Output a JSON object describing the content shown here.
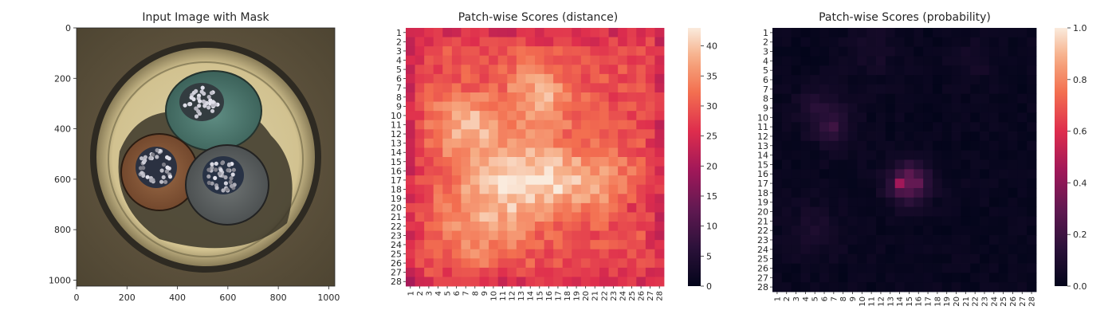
{
  "panels": {
    "image": {
      "title": "Input Image with Mask",
      "x_ticks": [
        "0",
        "200",
        "400",
        "600",
        "800",
        "1000"
      ],
      "y_ticks": [
        "0",
        "200",
        "400",
        "600",
        "800",
        "1000"
      ],
      "extent": [
        0,
        1024
      ]
    },
    "distance": {
      "title": "Patch-wise Scores (distance)",
      "colorbar_ticks": [
        "0",
        "5",
        "10",
        "15",
        "20",
        "25",
        "30",
        "35",
        "40"
      ],
      "colorbar_range": [
        0,
        43
      ]
    },
    "probability": {
      "title": "Patch-wise Scores (probability)",
      "colorbar_ticks": [
        "0.0",
        "0.2",
        "0.4",
        "0.6",
        "0.8",
        "1.0"
      ],
      "colorbar_range": [
        0.0,
        1.0
      ]
    }
  },
  "row_labels": [
    "1",
    "2",
    "3",
    "4",
    "5",
    "6",
    "7",
    "8",
    "9",
    "10",
    "11",
    "12",
    "13",
    "14",
    "15",
    "16",
    "17",
    "18",
    "19",
    "20",
    "21",
    "22",
    "23",
    "24",
    "25",
    "26",
    "27",
    "28"
  ],
  "col_labels": [
    "1",
    "2",
    "3",
    "4",
    "5",
    "6",
    "7",
    "8",
    "9",
    "10",
    "11",
    "12",
    "13",
    "14",
    "15",
    "16",
    "17",
    "18",
    "19",
    "20",
    "21",
    "22",
    "23",
    "24",
    "25",
    "26",
    "27",
    "28"
  ],
  "chart_data": [
    {
      "type": "image",
      "title": "Input Image with Mask",
      "xlim": [
        0,
        1024
      ],
      "ylim": [
        1024,
        0
      ],
      "content": "photograph of a circular cable cross-section with three insulated conductors (teal, brown, gray) inside a beige sheath"
    },
    {
      "type": "heatmap",
      "title": "Patch-wise Scores (distance)",
      "rows": 28,
      "cols": 28,
      "value_range": [
        0,
        43
      ],
      "colormap": "rocket",
      "colorbar": true,
      "generator": {
        "base": 29,
        "edge_drop": 4,
        "noise_amplitude": 3,
        "hotspots": [
          {
            "row": 8,
            "col": 15,
            "radius": 2.5,
            "boost": 9
          },
          {
            "row": 11,
            "col": 7,
            "radius": 2.5,
            "boost": 9
          },
          {
            "row": 17,
            "col": 12,
            "radius": 3.5,
            "boost": 10
          },
          {
            "row": 17,
            "col": 17,
            "radius": 2.5,
            "boost": 8
          },
          {
            "row": 22,
            "col": 8,
            "radius": 3.5,
            "boost": 6
          },
          {
            "row": 17,
            "col": 22,
            "radius": 2.5,
            "boost": 6
          }
        ],
        "cells": [
          {
            "row": 1,
            "col": 16,
            "value": 27
          },
          {
            "row": 1,
            "col": 17,
            "value": 27
          },
          {
            "row": 28,
            "col": 1,
            "value": 20
          },
          {
            "row": 28,
            "col": 2,
            "value": 24
          },
          {
            "row": 27,
            "col": 22,
            "value": 25
          },
          {
            "row": 20,
            "col": 25,
            "value": 25
          }
        ]
      }
    },
    {
      "type": "heatmap",
      "title": "Patch-wise Scores (probability)",
      "rows": 28,
      "cols": 28,
      "value_range": [
        0.0,
        1.0
      ],
      "colormap": "rocket",
      "colorbar": true,
      "generator": {
        "base": 0.02,
        "noise_amplitude": 0.02,
        "hotspots": [
          {
            "row": 17,
            "col": 15,
            "radius": 1.5,
            "boost": 0.3
          },
          {
            "row": 11,
            "col": 7,
            "radius": 1.5,
            "boost": 0.12
          },
          {
            "row": 9,
            "col": 5,
            "radius": 1.5,
            "boost": 0.08
          },
          {
            "row": 22,
            "col": 5,
            "radius": 2.0,
            "boost": 0.06
          },
          {
            "row": 3,
            "col": 11,
            "radius": 2.0,
            "boost": 0.05
          },
          {
            "row": 4,
            "col": 22,
            "radius": 1.5,
            "boost": 0.05
          }
        ],
        "cells": [
          {
            "row": 17,
            "col": 14,
            "value": 0.45
          },
          {
            "row": 17,
            "col": 16,
            "value": 0.3
          },
          {
            "row": 16,
            "col": 15,
            "value": 0.28
          },
          {
            "row": 11,
            "col": 7,
            "value": 0.2
          }
        ]
      }
    }
  ]
}
